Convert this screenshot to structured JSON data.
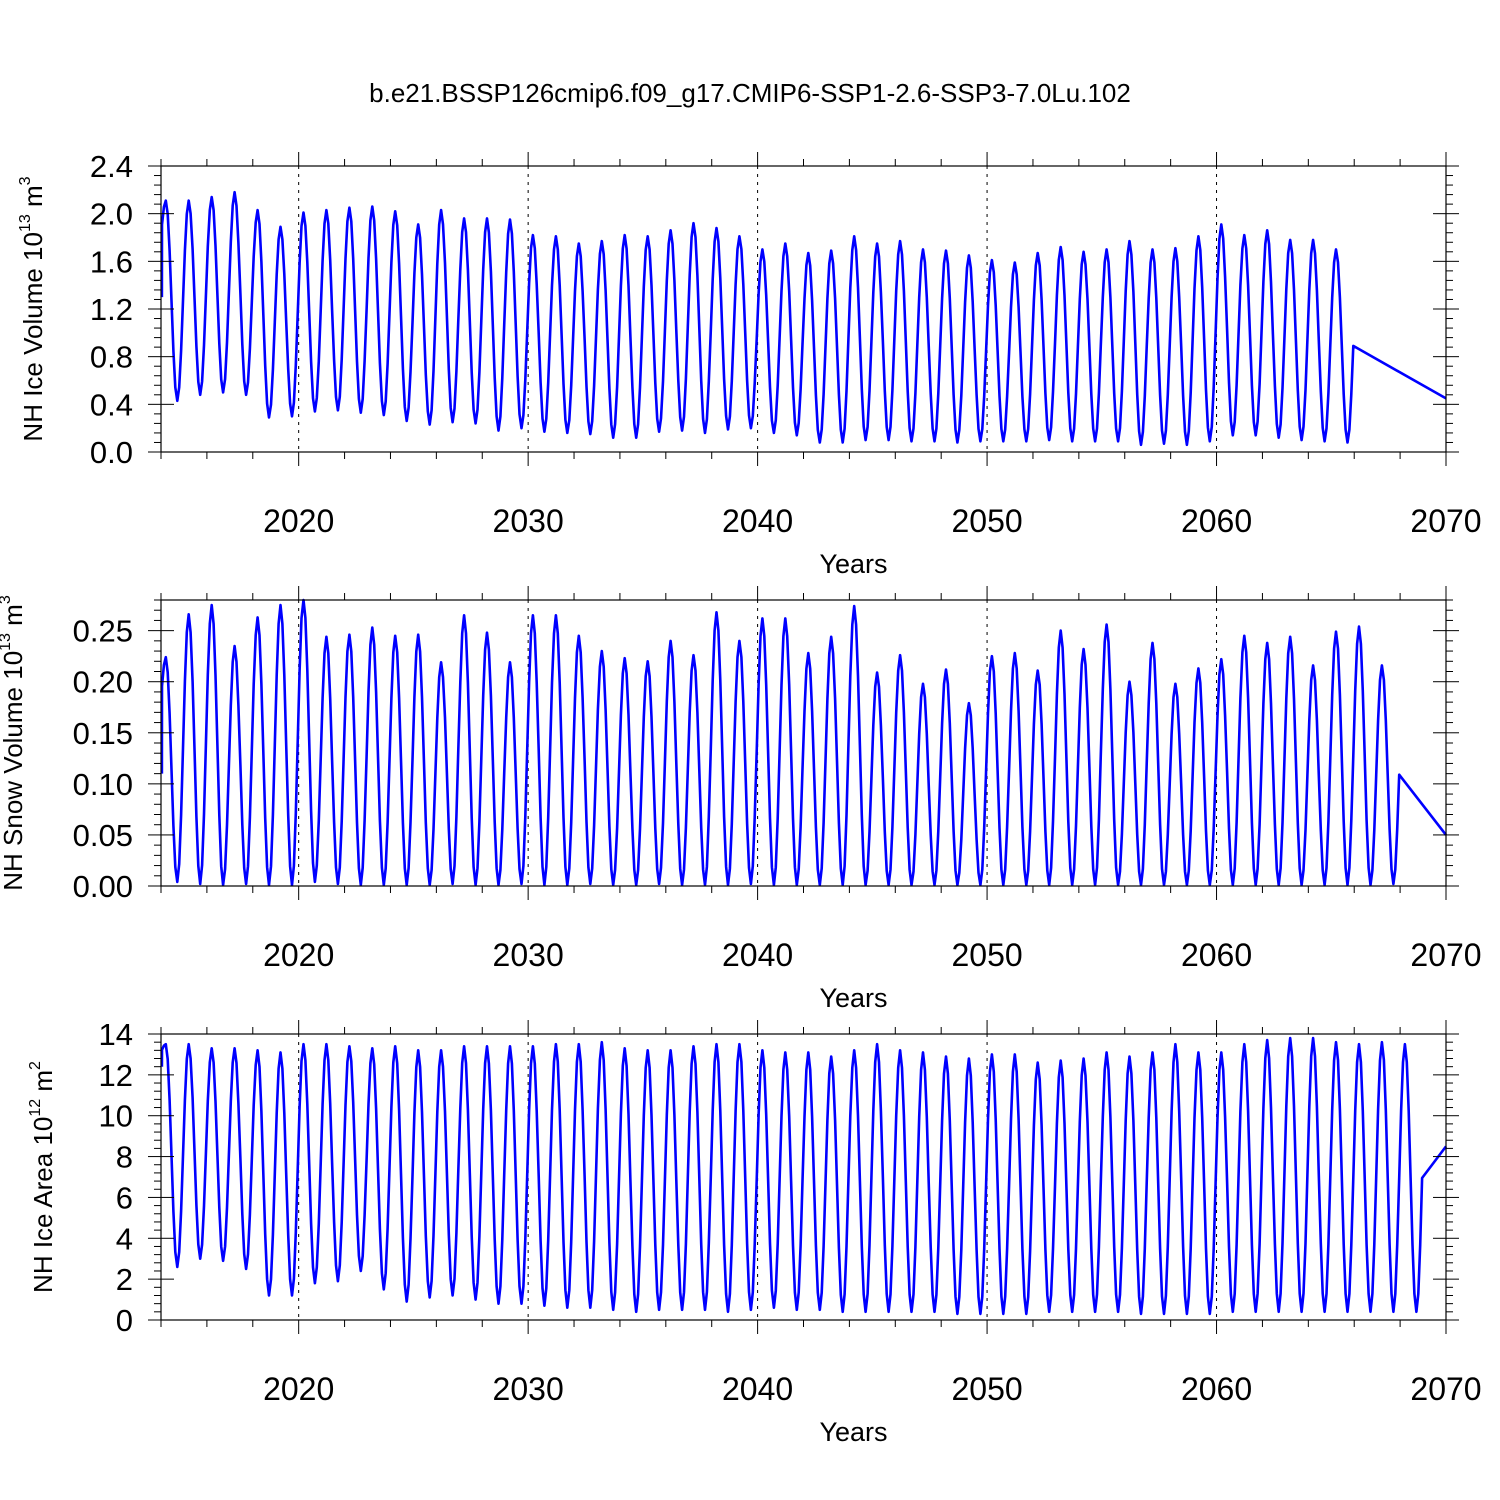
{
  "title": "b.e21.BSSP126cmip6.f09_g17.CMIP6-SSP1-2.6-SSP3-7.0Lu.102",
  "line_color": "#0000ff",
  "chart_data": [
    {
      "type": "line",
      "id": "ice-volume",
      "ylabel": "NH Ice Volume 10",
      "ylabel_exp": "13",
      "ylabel_unit": " m",
      "ylabel_unit_exp": "3",
      "xlabel": "Years",
      "xlim": [
        2014,
        2070
      ],
      "ylim": [
        0,
        2.4
      ],
      "x_ticks": [
        2020,
        2030,
        2040,
        2050,
        2060,
        2070
      ],
      "x_tick_labels": [
        "2020",
        "2030",
        "2040",
        "2050",
        "2060",
        "2070"
      ],
      "y_ticks": [
        0,
        0.4,
        0.8,
        1.2,
        1.6,
        2.0,
        2.4
      ],
      "y_tick_labels": [
        "0.0",
        "0.4",
        "0.8",
        "1.2",
        "1.6",
        "2.0",
        "2.4"
      ],
      "start": {
        "x": 2014.04,
        "y": 1.3
      },
      "end": {
        "x": 2070.0,
        "y": 0.45
      },
      "annual_max": [
        2.11,
        2.11,
        2.14,
        2.18,
        2.03,
        1.89,
        2.01,
        2.03,
        2.05,
        2.06,
        2.02,
        1.91,
        2.03,
        1.96,
        1.96,
        1.95,
        1.82,
        1.81,
        1.75,
        1.77,
        1.82,
        1.81,
        1.86,
        1.92,
        1.88,
        1.81,
        1.7,
        1.75,
        1.67,
        1.69,
        1.81,
        1.75,
        1.77,
        1.7,
        1.69,
        1.65,
        1.61,
        1.59,
        1.67,
        1.72,
        1.68,
        1.7,
        1.77,
        1.7,
        1.71,
        1.81,
        1.91,
        1.82,
        1.86,
        1.78,
        1.78,
        1.7
      ],
      "annual_min": [
        0.43,
        0.48,
        0.5,
        0.48,
        0.29,
        0.3,
        0.34,
        0.35,
        0.33,
        0.31,
        0.26,
        0.23,
        0.25,
        0.24,
        0.18,
        0.2,
        0.17,
        0.16,
        0.15,
        0.12,
        0.12,
        0.17,
        0.18,
        0.16,
        0.19,
        0.2,
        0.16,
        0.14,
        0.08,
        0.08,
        0.1,
        0.1,
        0.09,
        0.09,
        0.08,
        0.09,
        0.09,
        0.09,
        0.1,
        0.09,
        0.09,
        0.09,
        0.06,
        0.07,
        0.06,
        0.09,
        0.14,
        0.14,
        0.12,
        0.1,
        0.09,
        0.08
      ]
    },
    {
      "type": "line",
      "id": "snow-volume",
      "ylabel": "NH Snow Volume 10",
      "ylabel_exp": "13",
      "ylabel_unit": " m",
      "ylabel_unit_exp": "3",
      "xlabel": "Years",
      "xlim": [
        2014,
        2070
      ],
      "ylim": [
        0,
        0.28
      ],
      "x_ticks": [
        2020,
        2030,
        2040,
        2050,
        2060,
        2070
      ],
      "x_tick_labels": [
        "2020",
        "2030",
        "2040",
        "2050",
        "2060",
        "2070"
      ],
      "y_ticks": [
        0,
        0.05,
        0.1,
        0.15,
        0.2,
        0.25
      ],
      "y_tick_labels": [
        "0.00",
        "0.05",
        "0.10",
        "0.15",
        "0.20",
        "0.25"
      ],
      "start": {
        "x": 2014.04,
        "y": 0.11
      },
      "end": {
        "x": 2070.0,
        "y": 0.05
      },
      "annual_max": [
        0.224,
        0.266,
        0.275,
        0.235,
        0.263,
        0.275,
        0.281,
        0.244,
        0.246,
        0.253,
        0.245,
        0.246,
        0.219,
        0.265,
        0.248,
        0.219,
        0.265,
        0.265,
        0.245,
        0.23,
        0.223,
        0.22,
        0.24,
        0.226,
        0.268,
        0.24,
        0.262,
        0.262,
        0.228,
        0.244,
        0.274,
        0.209,
        0.226,
        0.198,
        0.212,
        0.179,
        0.225,
        0.228,
        0.211,
        0.25,
        0.232,
        0.256,
        0.2,
        0.238,
        0.198,
        0.213,
        0.222,
        0.245,
        0.238,
        0.244,
        0.216,
        0.249,
        0.254,
        0.216
      ],
      "annual_min": [
        0.004,
        0.002,
        0.001,
        0.002,
        0.001,
        0.001,
        0.004,
        0.002,
        0.001,
        0.001,
        0.001,
        0.001,
        0.002,
        0.001,
        0.001,
        0.002,
        0.001,
        0.001,
        0.002,
        0.001,
        0.001,
        0.002,
        0.001,
        0.001,
        0.001,
        0.002,
        0.001,
        0.001,
        0.001,
        0.001,
        0.001,
        0.001,
        0.001,
        0.001,
        0.001,
        0.001,
        0.001,
        0.001,
        0.001,
        0.001,
        0.001,
        0.001,
        0.001,
        0.001,
        0.001,
        0.001,
        0.001,
        0.001,
        0.001,
        0.001,
        0.001,
        0.001,
        0.001,
        0.002
      ]
    },
    {
      "type": "line",
      "id": "ice-area",
      "ylabel": "NH Ice Area 10",
      "ylabel_exp": "12",
      "ylabel_unit": " m",
      "ylabel_unit_exp": "2",
      "xlabel": "Years",
      "xlim": [
        2014,
        2070
      ],
      "ylim": [
        0,
        14
      ],
      "x_ticks": [
        2020,
        2030,
        2040,
        2050,
        2060,
        2070
      ],
      "x_tick_labels": [
        "2020",
        "2030",
        "2040",
        "2050",
        "2060",
        "2070"
      ],
      "y_ticks": [
        0,
        2,
        4,
        6,
        8,
        10,
        12,
        14
      ],
      "y_tick_labels": [
        "0",
        "2",
        "4",
        "6",
        "8",
        "10",
        "12",
        "14"
      ],
      "start": {
        "x": 2014.04,
        "y": 12.4
      },
      "end": {
        "x": 2070.0,
        "y": 8.5
      },
      "annual_max": [
        13.5,
        13.5,
        13.3,
        13.3,
        13.2,
        13.1,
        13.5,
        13.5,
        13.4,
        13.3,
        13.4,
        13.2,
        13.2,
        13.4,
        13.4,
        13.4,
        13.4,
        13.5,
        13.5,
        13.6,
        13.3,
        13.2,
        13.2,
        13.4,
        13.5,
        13.5,
        13.2,
        13.1,
        13.1,
        12.9,
        13.2,
        13.5,
        13.2,
        13.1,
        12.9,
        12.8,
        13.0,
        13.0,
        12.6,
        12.7,
        12.8,
        13.1,
        12.9,
        13.1,
        13.5,
        13.1,
        13.1,
        13.5,
        13.7,
        13.8,
        13.8,
        13.6,
        13.5,
        13.6,
        13.5
      ],
      "annual_min": [
        2.6,
        3.0,
        2.9,
        2.5,
        1.2,
        1.2,
        1.8,
        1.9,
        2.4,
        1.5,
        0.9,
        1.1,
        1.2,
        1.0,
        0.8,
        0.8,
        0.7,
        0.6,
        0.6,
        0.5,
        0.4,
        0.5,
        0.5,
        0.5,
        0.4,
        0.5,
        0.6,
        0.5,
        0.5,
        0.4,
        0.4,
        0.4,
        0.4,
        0.4,
        0.3,
        0.3,
        0.3,
        0.3,
        0.4,
        0.4,
        0.4,
        0.4,
        0.3,
        0.3,
        0.3,
        0.3,
        0.4,
        0.4,
        0.4,
        0.4,
        0.4,
        0.4,
        0.4,
        0.4,
        0.4
      ]
    }
  ]
}
